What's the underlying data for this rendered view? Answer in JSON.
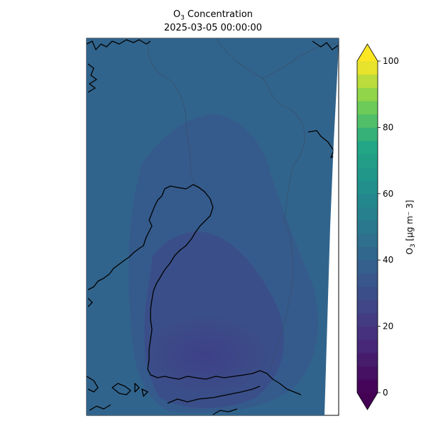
{
  "title": {
    "line1_prefix": "O",
    "line1_sub": "3",
    "line1_suffix": " Concentration",
    "line2": "2025-03-05 00:00:00"
  },
  "colorbar": {
    "label_prefix": "O",
    "label_sub": "3",
    "label_suffix": " [µg m⁻ 3]",
    "ticks": [
      "0",
      "20",
      "40",
      "60",
      "80",
      "100"
    ],
    "min": 0,
    "max": 100,
    "levels": 25,
    "extend": "both",
    "colormap": "viridis"
  },
  "map": {
    "region": "Finland and surroundings",
    "field_range_ugm3": [
      20,
      36
    ],
    "coastline_color": "#000000",
    "border_color": "#3a4a66"
  }
}
